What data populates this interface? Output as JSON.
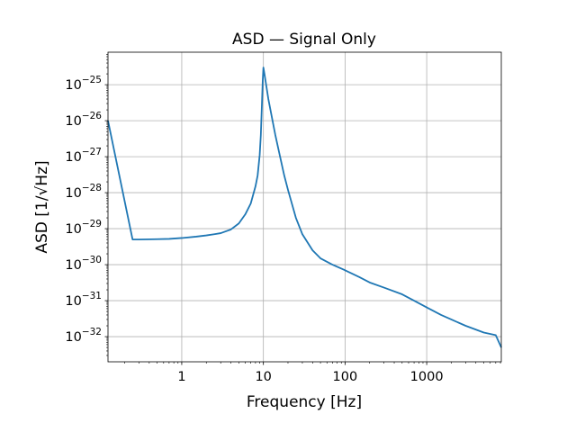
{
  "chart_data": {
    "type": "line",
    "title": "ASD — Signal Only",
    "xlabel": "Frequency [Hz]",
    "ylabel": "ASD [1/√Hz]",
    "x_scale": "log",
    "y_scale": "log",
    "xlim": [
      0.125,
      8192
    ],
    "ylim": [
      2e-33,
      8e-25
    ],
    "grid": true,
    "x_ticks": [
      {
        "value": 1,
        "label": "1"
      },
      {
        "value": 10,
        "label": "10"
      },
      {
        "value": 100,
        "label": "100"
      },
      {
        "value": 1000,
        "label": "1000"
      }
    ],
    "y_ticks": [
      {
        "value": 1e-32,
        "base": "10",
        "exp": "−32"
      },
      {
        "value": 1e-31,
        "base": "10",
        "exp": "−31"
      },
      {
        "value": 1e-30,
        "base": "10",
        "exp": "−30"
      },
      {
        "value": 1e-29,
        "base": "10",
        "exp": "−29"
      },
      {
        "value": 1e-28,
        "base": "10",
        "exp": "−28"
      },
      {
        "value": 1e-27,
        "base": "10",
        "exp": "−27"
      },
      {
        "value": 1e-26,
        "base": "10",
        "exp": "−26"
      },
      {
        "value": 1e-25,
        "base": "10",
        "exp": "−25"
      }
    ],
    "line_color": "#1f77b4",
    "series": [
      {
        "x": [
          0.125,
          0.25,
          0.3,
          0.5,
          0.7,
          1.0,
          1.5,
          2.0,
          2.5,
          3.0,
          4.0,
          5.0,
          6.0,
          7.0,
          8.0,
          8.5,
          9.0,
          9.3,
          9.6,
          9.8,
          10.0,
          10.3,
          10.8,
          11.5,
          12.5,
          14,
          16,
          18,
          20,
          25,
          30,
          40,
          50,
          70,
          100,
          150,
          200,
          300,
          500,
          700,
          1000,
          1500,
          2000,
          3000,
          5000,
          7000,
          8192
        ],
        "y": [
          1e-26,
          5e-30,
          5e-30,
          5.1e-30,
          5.2e-30,
          5.5e-30,
          6e-30,
          6.5e-30,
          7e-30,
          7.5e-30,
          9.5e-30,
          1.4e-29,
          2.5e-29,
          5e-29,
          1.5e-28,
          3e-28,
          1.1e-27,
          4e-27,
          3e-26,
          1.2e-25,
          3e-25,
          2e-25,
          1e-25,
          4e-26,
          1.5e-26,
          4e-27,
          1e-27,
          3e-28,
          1.2e-28,
          2e-29,
          7e-30,
          2.5e-30,
          1.5e-30,
          1e-30,
          7e-31,
          4.5e-31,
          3.2e-31,
          2.3e-31,
          1.5e-31,
          1e-31,
          6.5e-32,
          4e-32,
          3e-32,
          2e-32,
          1.3e-32,
          1.1e-32,
          5e-33
        ]
      }
    ]
  }
}
